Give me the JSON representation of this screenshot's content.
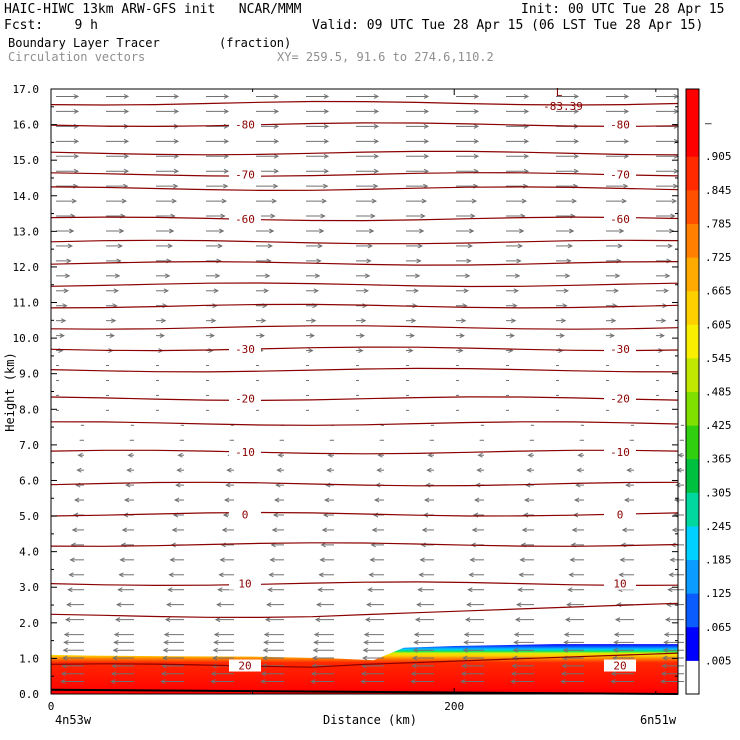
{
  "header": {
    "line1_left": "HAIC-HIWC 13km ARW-GFS init   NCAR/MMM",
    "line1_right": "Init: 00 UTC Tue 28 Apr 15",
    "line2_left": "Fcst:    9 h",
    "line2_right": "Valid: 09 UTC Tue 28 Apr 15 (06 LST Tue 28 Apr 15)",
    "field_name": "Boundary Layer Tracer",
    "field_units": "(fraction)",
    "vector_name": "Circulation vectors",
    "xy_range": "XY= 259.5, 91.6 to 274.6,110.2"
  },
  "chart_data": {
    "type": "heatmap",
    "ylabel": "Height (km)",
    "xlabel": "Distance (km)",
    "ylim": [
      0,
      17
    ],
    "xlim": [
      0,
      311
    ],
    "y_ticks": [
      "0.0",
      "1.0",
      "2.0",
      "3.0",
      "4.0",
      "5.0",
      "6.0",
      "7.0",
      "8.0",
      "9.0",
      "10.0",
      "11.0",
      "12.0",
      "13.0",
      "14.0",
      "15.0",
      "16.0",
      "17.0"
    ],
    "x_ticks": [
      {
        "value": 0,
        "label": "0"
      },
      {
        "value": 200,
        "label": "200"
      }
    ],
    "x_endpoints": {
      "left": "4n53w",
      "right": "6n51w"
    },
    "colorbar": {
      "labels": [
        ".005",
        ".065",
        ".125",
        ".185",
        ".245",
        ".305",
        ".365",
        ".425",
        ".485",
        ".545",
        ".605",
        ".665",
        ".725",
        ".785",
        ".845",
        ".905",
        "–"
      ],
      "colors": [
        "#ffffff",
        "#0000ff",
        "#0a5cff",
        "#0a9cff",
        "#00d0ff",
        "#00d8a0",
        "#00c040",
        "#30d010",
        "#80e000",
        "#c0e800",
        "#f8f000",
        "#ffd000",
        "#ffaa00",
        "#ff8000",
        "#ff5000",
        "#ff2a00",
        "#ff0000",
        "#ff0000"
      ]
    },
    "contours": {
      "name": "temperature (C)",
      "labeled": [
        {
          "value": -80,
          "height_km": 16.0
        },
        {
          "value": -70,
          "height_km": 14.6
        },
        {
          "value": -60,
          "height_km": 13.35
        },
        {
          "value": -30,
          "height_km": 9.7
        },
        {
          "value": -20,
          "height_km": 8.3
        },
        {
          "value": -10,
          "height_km": 6.8
        },
        {
          "value": 0,
          "height_km": 5.05
        },
        {
          "value": 10,
          "height_km": 3.1
        },
        {
          "value": 20,
          "height_km": 0.8
        }
      ],
      "unlabeled_heights_km": [
        16.6,
        15.2,
        14.2,
        12.7,
        12.1,
        11.5,
        10.9,
        10.3,
        9.1,
        7.6,
        5.9,
        4.2,
        2.2
      ],
      "low_label": "L",
      "low_value": "-83.39",
      "low_position": {
        "distance_km": 252,
        "height_km": 16.75
      }
    },
    "boundary_layer_top_km": {
      "distances_km": [
        0,
        20,
        60,
        100,
        140,
        160,
        175,
        200,
        250,
        311
      ],
      "heights_km": [
        1.1,
        1.08,
        1.06,
        1.05,
        1.0,
        0.95,
        1.3,
        1.35,
        1.4,
        1.4
      ]
    },
    "vectors": {
      "upper_direction": "eastward",
      "lower_direction": "westward",
      "reversal_height_km": 9.5
    }
  }
}
